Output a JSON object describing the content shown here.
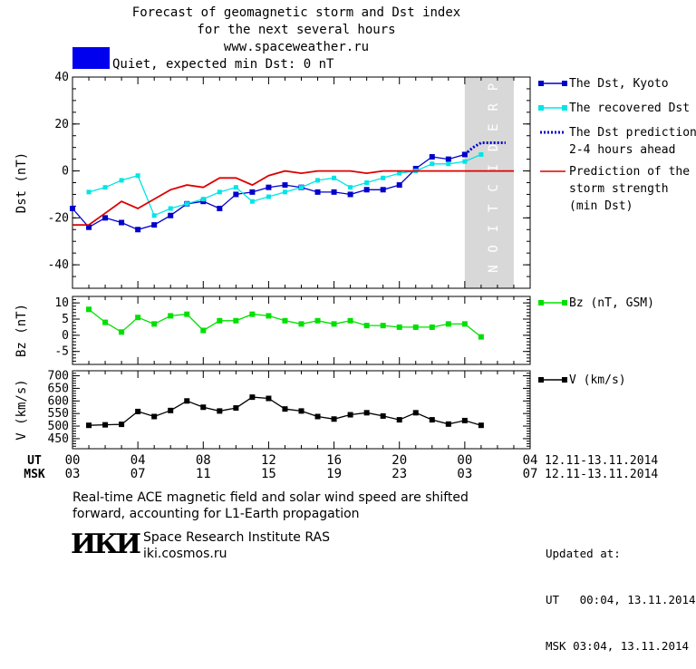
{
  "header": {
    "title_lines": [
      "Forecast of geomagnetic storm and Dst index",
      "for the next several hours",
      "www.spaceweather.ru"
    ],
    "status_label": "Quiet, expected min Dst: 0 nT",
    "status_color": "#0000ee"
  },
  "prediction_label": "PREDICTION",
  "chart_data": [
    {
      "type": "line",
      "ylabel": "Dst (nT)",
      "ylim": [
        -50,
        40
      ],
      "yticks": [
        40,
        20,
        0,
        -20,
        -40
      ],
      "prediction_region_x": [
        24,
        27
      ],
      "series": [
        {
          "name": "The Dst, Kyoto",
          "color": "#0000cc",
          "marker": "square",
          "x": [
            0,
            1,
            2,
            3,
            4,
            5,
            6,
            7,
            8,
            9,
            10,
            11,
            12,
            13,
            14,
            15,
            16,
            17,
            18,
            19,
            20,
            21,
            22,
            23,
            24
          ],
          "y": [
            -16,
            -24,
            -20,
            -22,
            -25,
            -23,
            -19,
            -14,
            -13,
            -16,
            -10,
            -9,
            -7,
            -6,
            -7,
            -9,
            -9,
            -10,
            -8,
            -8,
            -6,
            1,
            6,
            5,
            7
          ]
        },
        {
          "name": "The recovered Dst",
          "color": "#00e5e5",
          "marker": "square",
          "x": [
            1,
            2,
            3,
            4,
            5,
            6,
            7,
            8,
            9,
            10,
            11,
            12,
            13,
            14,
            15,
            16,
            17,
            18,
            19,
            20,
            21,
            22,
            23,
            24,
            25
          ],
          "y": [
            -9,
            -7,
            -4,
            -2,
            -19,
            -16,
            -14,
            -12,
            -9,
            -7,
            -13,
            -11,
            -9,
            -7,
            -4,
            -3,
            -7,
            -5,
            -3,
            -1,
            0,
            3,
            3,
            4,
            7
          ]
        },
        {
          "name": "The Dst prediction 2-4 hours ahead",
          "color": "#0000cc",
          "dashed": true,
          "x": [
            24,
            24.5,
            25,
            25.5,
            26,
            26.5
          ],
          "y": [
            7,
            10,
            12,
            12,
            12,
            12
          ]
        },
        {
          "name": "Prediction of the storm strength (min Dst)",
          "color": "#dd0000",
          "x": [
            0,
            1,
            2,
            3,
            4,
            5,
            6,
            7,
            8,
            9,
            10,
            11,
            12,
            13,
            14,
            15,
            16,
            17,
            18,
            19,
            20,
            21,
            22,
            23,
            24,
            25,
            26,
            27
          ],
          "y": [
            -23,
            -23,
            -18,
            -13,
            -16,
            -12,
            -8,
            -6,
            -7,
            -3,
            -3,
            -6,
            -2,
            0,
            -1,
            0,
            0,
            0,
            -1,
            0,
            0,
            0,
            0,
            0,
            0,
            0,
            0,
            0
          ]
        }
      ]
    },
    {
      "type": "line",
      "ylabel": "Bz (nT)",
      "ylim": [
        -9,
        12
      ],
      "yticks": [
        10,
        5,
        0,
        -5
      ],
      "series": [
        {
          "name": "Bz (nT, GSM)",
          "color": "#00e000",
          "marker": "square",
          "x": [
            1,
            2,
            3,
            4,
            5,
            6,
            7,
            8,
            9,
            10,
            11,
            12,
            13,
            14,
            15,
            16,
            17,
            18,
            19,
            20,
            21,
            22,
            23,
            24,
            25
          ],
          "y": [
            8,
            4,
            1,
            5.5,
            3.5,
            6,
            6.5,
            1.5,
            4.5,
            4.5,
            6.5,
            6,
            4.5,
            3.5,
            4.5,
            3.5,
            4.5,
            3,
            3,
            2.5,
            2.5,
            2.5,
            3.5,
            3.5,
            -0.5
          ]
        }
      ]
    },
    {
      "type": "line",
      "ylabel": "V (km/s)",
      "ylim": [
        410,
        720
      ],
      "yticks": [
        700,
        650,
        600,
        550,
        500,
        450
      ],
      "series": [
        {
          "name": "V (km/s)",
          "color": "#000000",
          "marker": "square",
          "x": [
            1,
            2,
            3,
            4,
            5,
            6,
            7,
            8,
            9,
            10,
            11,
            12,
            13,
            14,
            15,
            16,
            17,
            18,
            19,
            20,
            21,
            22,
            23,
            24,
            25
          ],
          "y": [
            503,
            505,
            507,
            558,
            538,
            562,
            600,
            575,
            560,
            572,
            615,
            610,
            568,
            560,
            538,
            528,
            545,
            553,
            540,
            525,
            553,
            525,
            508,
            522,
            503
          ]
        }
      ]
    }
  ],
  "x_axis": {
    "ut_label": "UT",
    "msk_label": "MSK",
    "ut_ticks": [
      "00",
      "04",
      "08",
      "12",
      "16",
      "20",
      "00",
      "04"
    ],
    "msk_ticks": [
      "03",
      "07",
      "11",
      "15",
      "19",
      "23",
      "03",
      "07"
    ],
    "date_range": "12.11-13.11.2014"
  },
  "footer": {
    "note_lines": [
      "Real-time ACE magnetic field and solar wind speed are shifted",
      "forward, accounting for L1-Earth propagation"
    ],
    "logo_text": "ИКИ",
    "institute": "Space Research Institute RAS",
    "site": "iki.cosmos.ru",
    "updated_label": "Updated at:",
    "updated_ut": "UT   00:04, 13.11.2014",
    "updated_msk": "MSK 03:04, 13.11.2014"
  }
}
